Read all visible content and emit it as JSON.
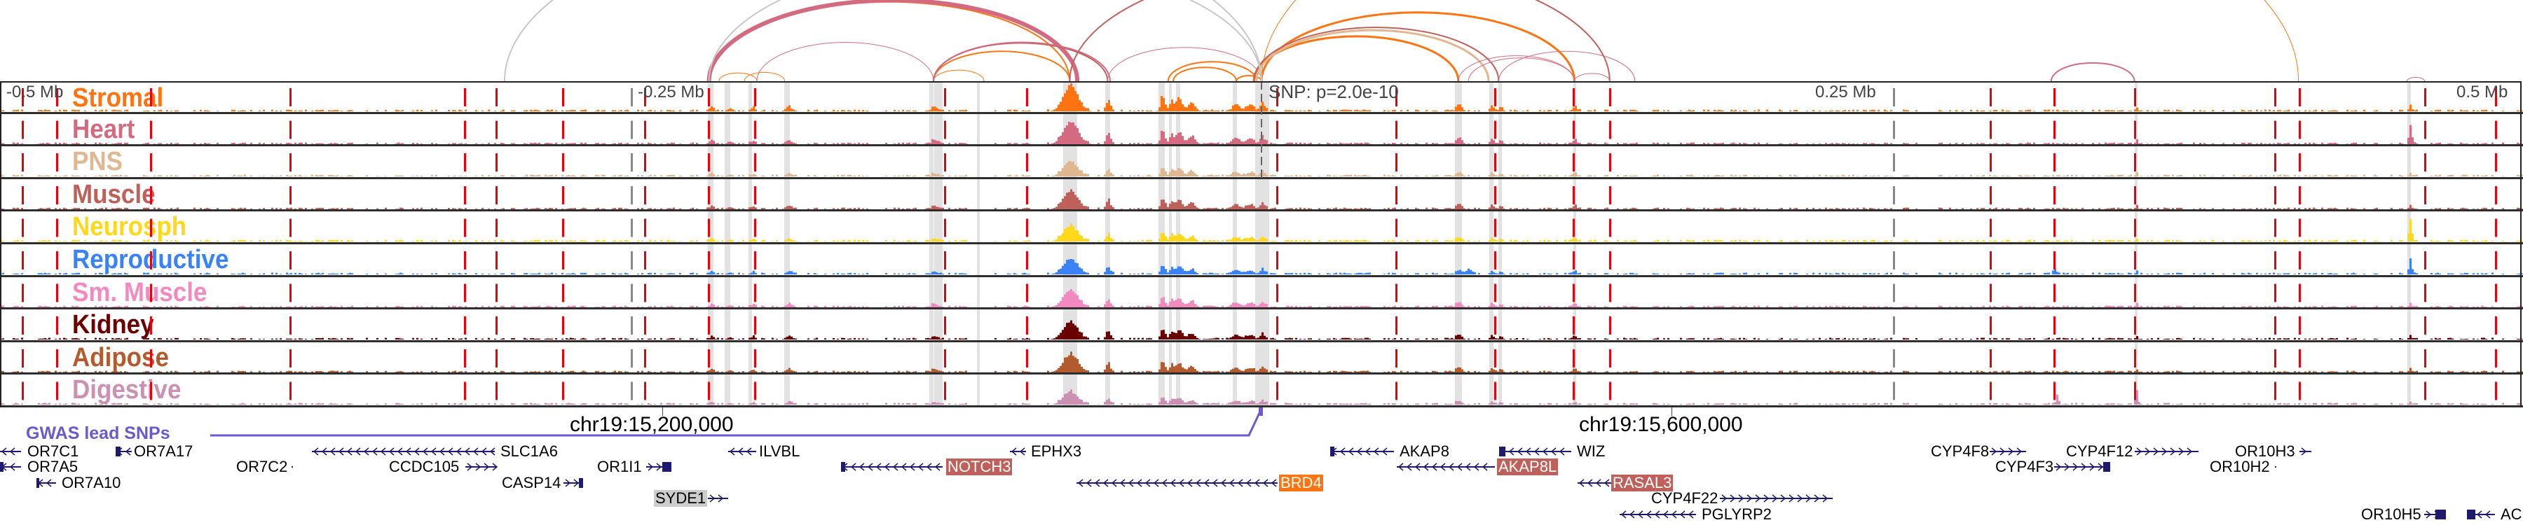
{
  "axis": {
    "left": "-0.5 Mb",
    "left_mid": "-0.25 Mb",
    "right_mid": "0.25 Mb",
    "right": "0.5 Mb",
    "snp": "SNP: p=2.0e-10"
  },
  "coords": {
    "c1": "chr19:15,200,000",
    "c2": "chr19:15,600,000"
  },
  "gwas_label": "GWAS lead SNPs",
  "colors": {
    "red_line": "#e8000b",
    "gwas": "#6a5acd",
    "gene": "#1e1b6e",
    "band": "#e2e2e2"
  },
  "tracks": [
    {
      "label": "Stromal",
      "color": "#ff7410",
      "gain": 1.0
    },
    {
      "label": "Heart",
      "color": "#d46a80",
      "gain": 0.9
    },
    {
      "label": "PNS",
      "color": "#dfb892",
      "gain": 0.6
    },
    {
      "label": "Muscle",
      "color": "#c0605a",
      "gain": 0.75
    },
    {
      "label": "Neurosph",
      "color": "#ffd81a",
      "gain": 0.6
    },
    {
      "label": "Reproductive",
      "color": "#3a82f7",
      "gain": 0.6
    },
    {
      "label": "Sm. Muscle",
      "color": "#f28ac0",
      "gain": 0.7
    },
    {
      "label": "Kidney",
      "color": "#6b0000",
      "gain": 0.7
    },
    {
      "label": "Adipose",
      "color": "#b35a2e",
      "gain": 0.7
    },
    {
      "label": "Digestive",
      "color": "#cc90b2",
      "gain": 0.5
    }
  ],
  "peaks_kb": [
    [
      -76,
      4,
      1.0
    ],
    [
      -61,
      1.2,
      0.45
    ],
    [
      -39.5,
      1.2,
      0.6
    ],
    [
      -36,
      1.2,
      0.4
    ],
    [
      -33,
      1.5,
      0.55
    ],
    [
      -28,
      2,
      0.3
    ],
    [
      -10.5,
      1.5,
      0.3
    ],
    [
      -5,
      2,
      0.25
    ],
    [
      0,
      1.5,
      0.3
    ],
    [
      -130,
      1.5,
      0.2
    ],
    [
      -218,
      1,
      0.2
    ],
    [
      -211,
      1.5,
      0.12
    ],
    [
      -202,
      1,
      0.15
    ],
    [
      -188,
      1.5,
      0.18
    ],
    [
      78,
      1.5,
      0.3
    ],
    [
      91,
      1,
      0.25
    ],
    [
      94.5,
      1,
      0.2
    ],
    [
      124,
      1.2,
      0.15
    ],
    [
      346.5,
      0.8,
      0.15
    ],
    [
      455,
      0.8,
      0.25
    ]
  ],
  "track_peaks_kb": {
    "4": [
      [
        455,
        0.8,
        1.2
      ]
    ],
    "5": [
      [
        455,
        0.8,
        0.8
      ],
      [
        314,
        0.8,
        0.4
      ],
      [
        82,
        2,
        0.3
      ]
    ],
    "9": [
      [
        315,
        0.8,
        0.6
      ],
      [
        346.5,
        0.8,
        0.9
      ]
    ],
    "1": [
      [
        455,
        0.8,
        0.6
      ]
    ]
  },
  "bands_kb": [
    [
      -219.4,
      -217.2
    ],
    [
      -212.8,
      -210.6
    ],
    [
      -203.3,
      -201.9
    ],
    [
      -189.2,
      -186.9
    ],
    [
      -131.7,
      -130
    ],
    [
      -129.7,
      -126.4
    ],
    [
      -112.8,
      -111.7
    ],
    [
      -78.6,
      -73.1
    ],
    [
      -61.9,
      -60
    ],
    [
      -40.8,
      -38.3
    ],
    [
      -36.7,
      -35.6
    ],
    [
      -33.9,
      -32.2
    ],
    [
      -11.4,
      -9.7
    ],
    [
      -2.5,
      3.1
    ],
    [
      76.7,
      79.4
    ],
    [
      90.3,
      91.9
    ],
    [
      93.9,
      95.3
    ],
    [
      123.6,
      124.7
    ],
    [
      346.1,
      347.2
    ],
    [
      454.2,
      455.6
    ]
  ],
  "arcs_kb": [
    [
      -219,
      -76,
      0,
      2
    ],
    [
      -215,
      -200,
      0,
      1
    ],
    [
      -205,
      -189,
      0,
      1
    ],
    [
      -219,
      -73,
      1,
      6
    ],
    [
      -200,
      -130,
      1,
      1
    ],
    [
      -130,
      -76,
      0,
      2
    ],
    [
      -130,
      -110,
      0,
      1
    ],
    [
      -130,
      -61,
      3,
      2
    ],
    [
      -130,
      -60,
      1,
      2
    ],
    [
      -61,
      0,
      1,
      1
    ],
    [
      -37,
      -2,
      0,
      2
    ],
    [
      -35,
      -10,
      0,
      2
    ],
    [
      -10,
      0,
      0,
      2
    ],
    [
      -3,
      78,
      0,
      3
    ],
    [
      0,
      124,
      0,
      3
    ],
    [
      0,
      411,
      0,
      1
    ],
    [
      -76,
      138,
      3,
      2
    ],
    [
      -3,
      94,
      3,
      2
    ],
    [
      -2,
      90,
      2,
      3
    ],
    [
      -300,
      0,
      10,
      2
    ],
    [
      -219,
      0,
      10,
      2
    ],
    [
      78,
      124,
      1,
      1
    ],
    [
      82,
      124,
      1,
      1
    ],
    [
      94,
      148,
      1,
      1
    ],
    [
      124,
      138,
      1,
      1
    ],
    [
      313,
      346,
      1,
      2
    ],
    [
      454,
      461,
      1,
      1
    ]
  ],
  "genes": [
    {
      "name": "OR7C1",
      "strand": "-"
    },
    {
      "name": "OR7A17",
      "strand": "-"
    },
    {
      "name": "SLC1A6",
      "strand": "-"
    },
    {
      "name": "ILVBL",
      "strand": "-"
    },
    {
      "name": "EPHX3",
      "strand": "-"
    },
    {
      "name": "OR7A5",
      "strand": "-"
    },
    {
      "name": "OR7C2",
      "strand": "+"
    },
    {
      "name": "CCDC105",
      "strand": "+"
    },
    {
      "name": "OR1I1",
      "strand": "+"
    },
    {
      "name": "NOTCH3",
      "strand": "-",
      "highlight": "#c0605a"
    },
    {
      "name": "OR7A10",
      "strand": "-"
    },
    {
      "name": "CASP14",
      "strand": "+"
    },
    {
      "name": "BRD4",
      "strand": "-",
      "highlight": "#ff7410"
    },
    {
      "name": "SYDE1",
      "strand": "+",
      "highlight": "#cccccc"
    },
    {
      "name": "AKAP8",
      "strand": "-"
    },
    {
      "name": "WIZ",
      "strand": "-"
    },
    {
      "name": "CYP4F8",
      "strand": "+"
    },
    {
      "name": "CYP4F12",
      "strand": "+"
    },
    {
      "name": "OR10H3",
      "strand": "+"
    },
    {
      "name": "AKAP8L",
      "strand": "-",
      "highlight": "#c0605a"
    },
    {
      "name": "CYP4F3",
      "strand": "+"
    },
    {
      "name": "OR10H2",
      "strand": "+"
    },
    {
      "name": "RASAL3",
      "strand": "-",
      "highlight": "#c0605a"
    },
    {
      "name": "CYP4F22",
      "strand": "+"
    },
    {
      "name": "PGLYRP2",
      "strand": "-"
    },
    {
      "name": "OR10H5",
      "strand": "+"
    },
    {
      "name": "AC",
      "strand": "-"
    }
  ]
}
